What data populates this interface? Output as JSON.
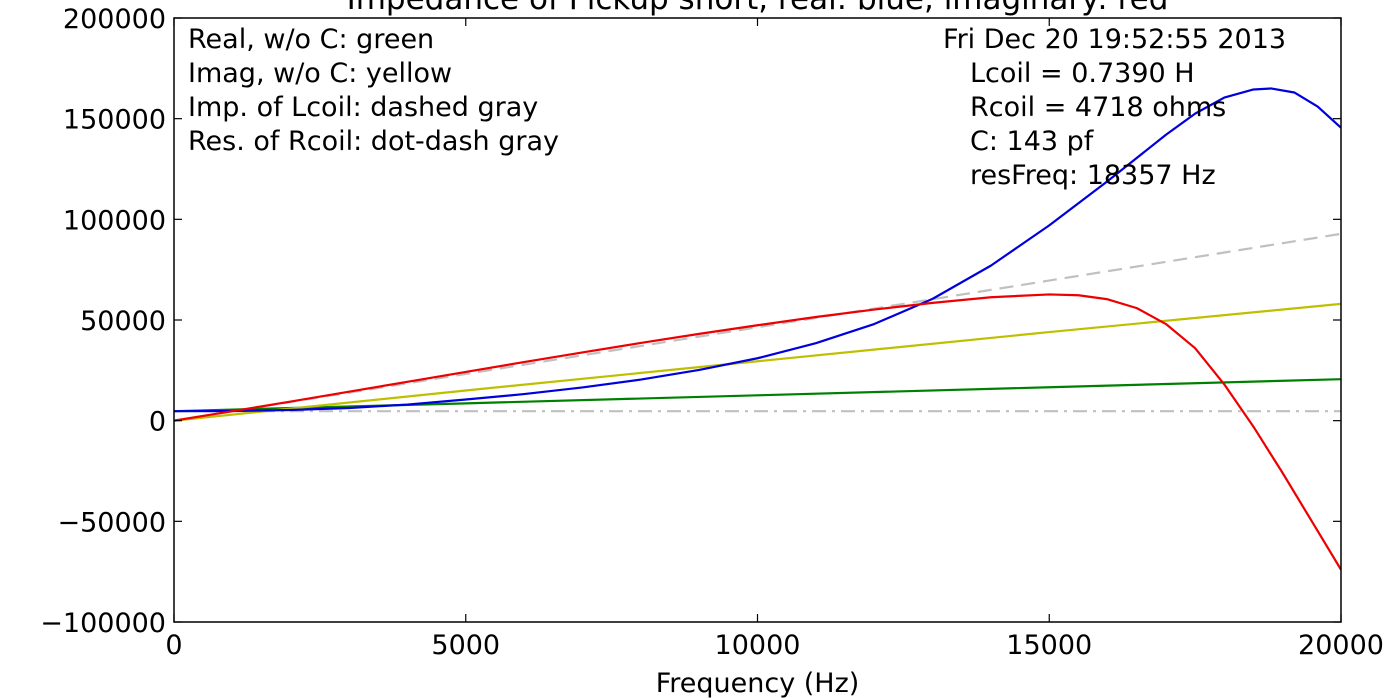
{
  "chart_data": {
    "type": "line",
    "title": "Impedance of Pickup short, real: blue, imaginary: red",
    "xlabel": "Frequency (Hz)",
    "ylabel": "",
    "xlim": [
      0,
      20000
    ],
    "ylim": [
      -100000,
      200000
    ],
    "x_ticks": [
      0,
      5000,
      10000,
      15000,
      20000
    ],
    "y_ticks": [
      -100000,
      -50000,
      0,
      50000,
      100000,
      150000,
      200000
    ],
    "x_tick_labels": [
      "0",
      "5000",
      "10000",
      "15000",
      "20000"
    ],
    "y_tick_labels": [
      "−100000",
      "−50000",
      "0",
      "50000",
      "100000",
      "150000",
      "200000"
    ],
    "grid": false,
    "legend": "none",
    "annotations_left": [
      "Real, w/o C: green",
      "Imag, w/o C: yellow",
      "Imp. of Lcoil: dashed gray",
      "Res. of Rcoil: dot-dash gray"
    ],
    "annotations_right": [
      "Fri Dec 20 19:52:55 2013",
      "Lcoil = 0.7390 H",
      "Rcoil = 4718 ohms",
      "C: 143 pf",
      "resFreq: 18357 Hz"
    ],
    "series": [
      {
        "key": "real",
        "color": "#0000dd",
        "dash": "",
        "x": [
          0,
          1000,
          2000,
          3000,
          4000,
          5000,
          6000,
          7000,
          8000,
          9000,
          10000,
          11000,
          12000,
          13000,
          14000,
          15000,
          16000,
          17000,
          17500,
          18000,
          18500,
          18800,
          19200,
          19600,
          20000
        ],
        "y": [
          4718,
          4800,
          5300,
          6300,
          8000,
          10500,
          13200,
          16500,
          20400,
          25200,
          31000,
          38500,
          48000,
          60500,
          77000,
          97000,
          119000,
          142000,
          152500,
          160500,
          164500,
          165000,
          163000,
          156000,
          145500
        ]
      },
      {
        "key": "imaginary",
        "color": "#ee0000",
        "dash": "",
        "x": [
          0,
          1000,
          2000,
          3000,
          4000,
          5000,
          6000,
          7000,
          8000,
          9000,
          10000,
          11000,
          12000,
          13000,
          14000,
          15000,
          15500,
          16000,
          16500,
          17000,
          17500,
          18000,
          18500,
          19000,
          19500,
          20000
        ],
        "y": [
          0,
          4700,
          9500,
          14400,
          19300,
          24200,
          29100,
          33900,
          38600,
          43100,
          47400,
          51500,
          55200,
          58500,
          61300,
          62700,
          62300,
          60300,
          55900,
          48000,
          36000,
          18000,
          -3000,
          -26000,
          -50000,
          -74000
        ]
      },
      {
        "key": "real-no-c",
        "color": "#008000",
        "dash": "",
        "x": [
          0,
          5000,
          10000,
          15000,
          20000
        ],
        "y": [
          4718,
          8600,
          12600,
          16600,
          20600
        ]
      },
      {
        "key": "imag-no-c",
        "color": "#bfbf00",
        "dash": "",
        "x": [
          0,
          5000,
          10000,
          15000,
          20000
        ],
        "y": [
          0,
          15000,
          29500,
          44000,
          58000
        ]
      },
      {
        "key": "imp-lcoil",
        "color": "#c0c0c0",
        "dash": "14,8",
        "x": [
          0,
          20000
        ],
        "y": [
          0,
          92800
        ]
      },
      {
        "key": "res-rcoil",
        "color": "#c0c0c0",
        "dash": "14,6,3,6",
        "x": [
          0,
          20000
        ],
        "y": [
          4718,
          4718
        ]
      }
    ]
  }
}
